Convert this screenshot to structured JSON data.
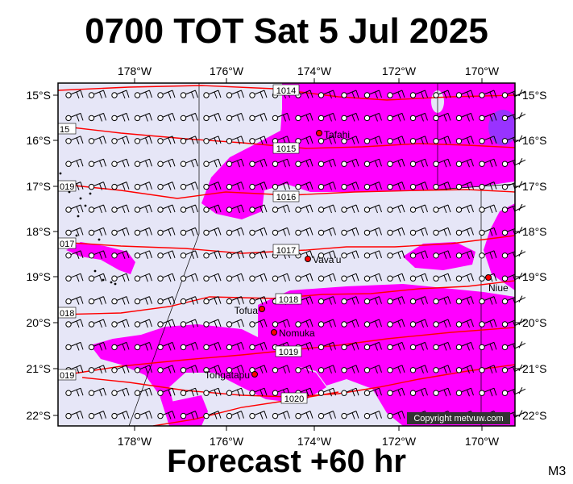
{
  "title": "0700 TOT Sat 5 Jul 2025",
  "footer": "Forecast +60 hr",
  "model_code": "M3",
  "copyright": "Copyright metvuw.com",
  "colors": {
    "background": "#e6e6f7",
    "rain": "#ff00ff",
    "rain_heavy": "#9933ff",
    "isobar": "#ff0000",
    "land": "#000000"
  },
  "longitude_labels": [
    "178°W",
    "176°W",
    "174°W",
    "172°W",
    "170°W"
  ],
  "latitude_labels": [
    "15°S",
    "16°S",
    "17°S",
    "18°S",
    "19°S",
    "20°S",
    "21°S",
    "22°S"
  ],
  "isobars": [
    {
      "label": "1014"
    },
    {
      "label": "1015"
    },
    {
      "label": "1016"
    },
    {
      "label": "1017"
    },
    {
      "label": "1018"
    },
    {
      "label": "1019"
    },
    {
      "label": "1020"
    }
  ],
  "edge_isobar_labels": [
    "15",
    "019",
    "017",
    "018",
    "019"
  ],
  "places": [
    {
      "name": "Tafahi"
    },
    {
      "name": "Vava'u"
    },
    {
      "name": "Niue"
    },
    {
      "name": "Tofua"
    },
    {
      "name": "Nomuka"
    },
    {
      "name": "Tongatapu"
    }
  ]
}
